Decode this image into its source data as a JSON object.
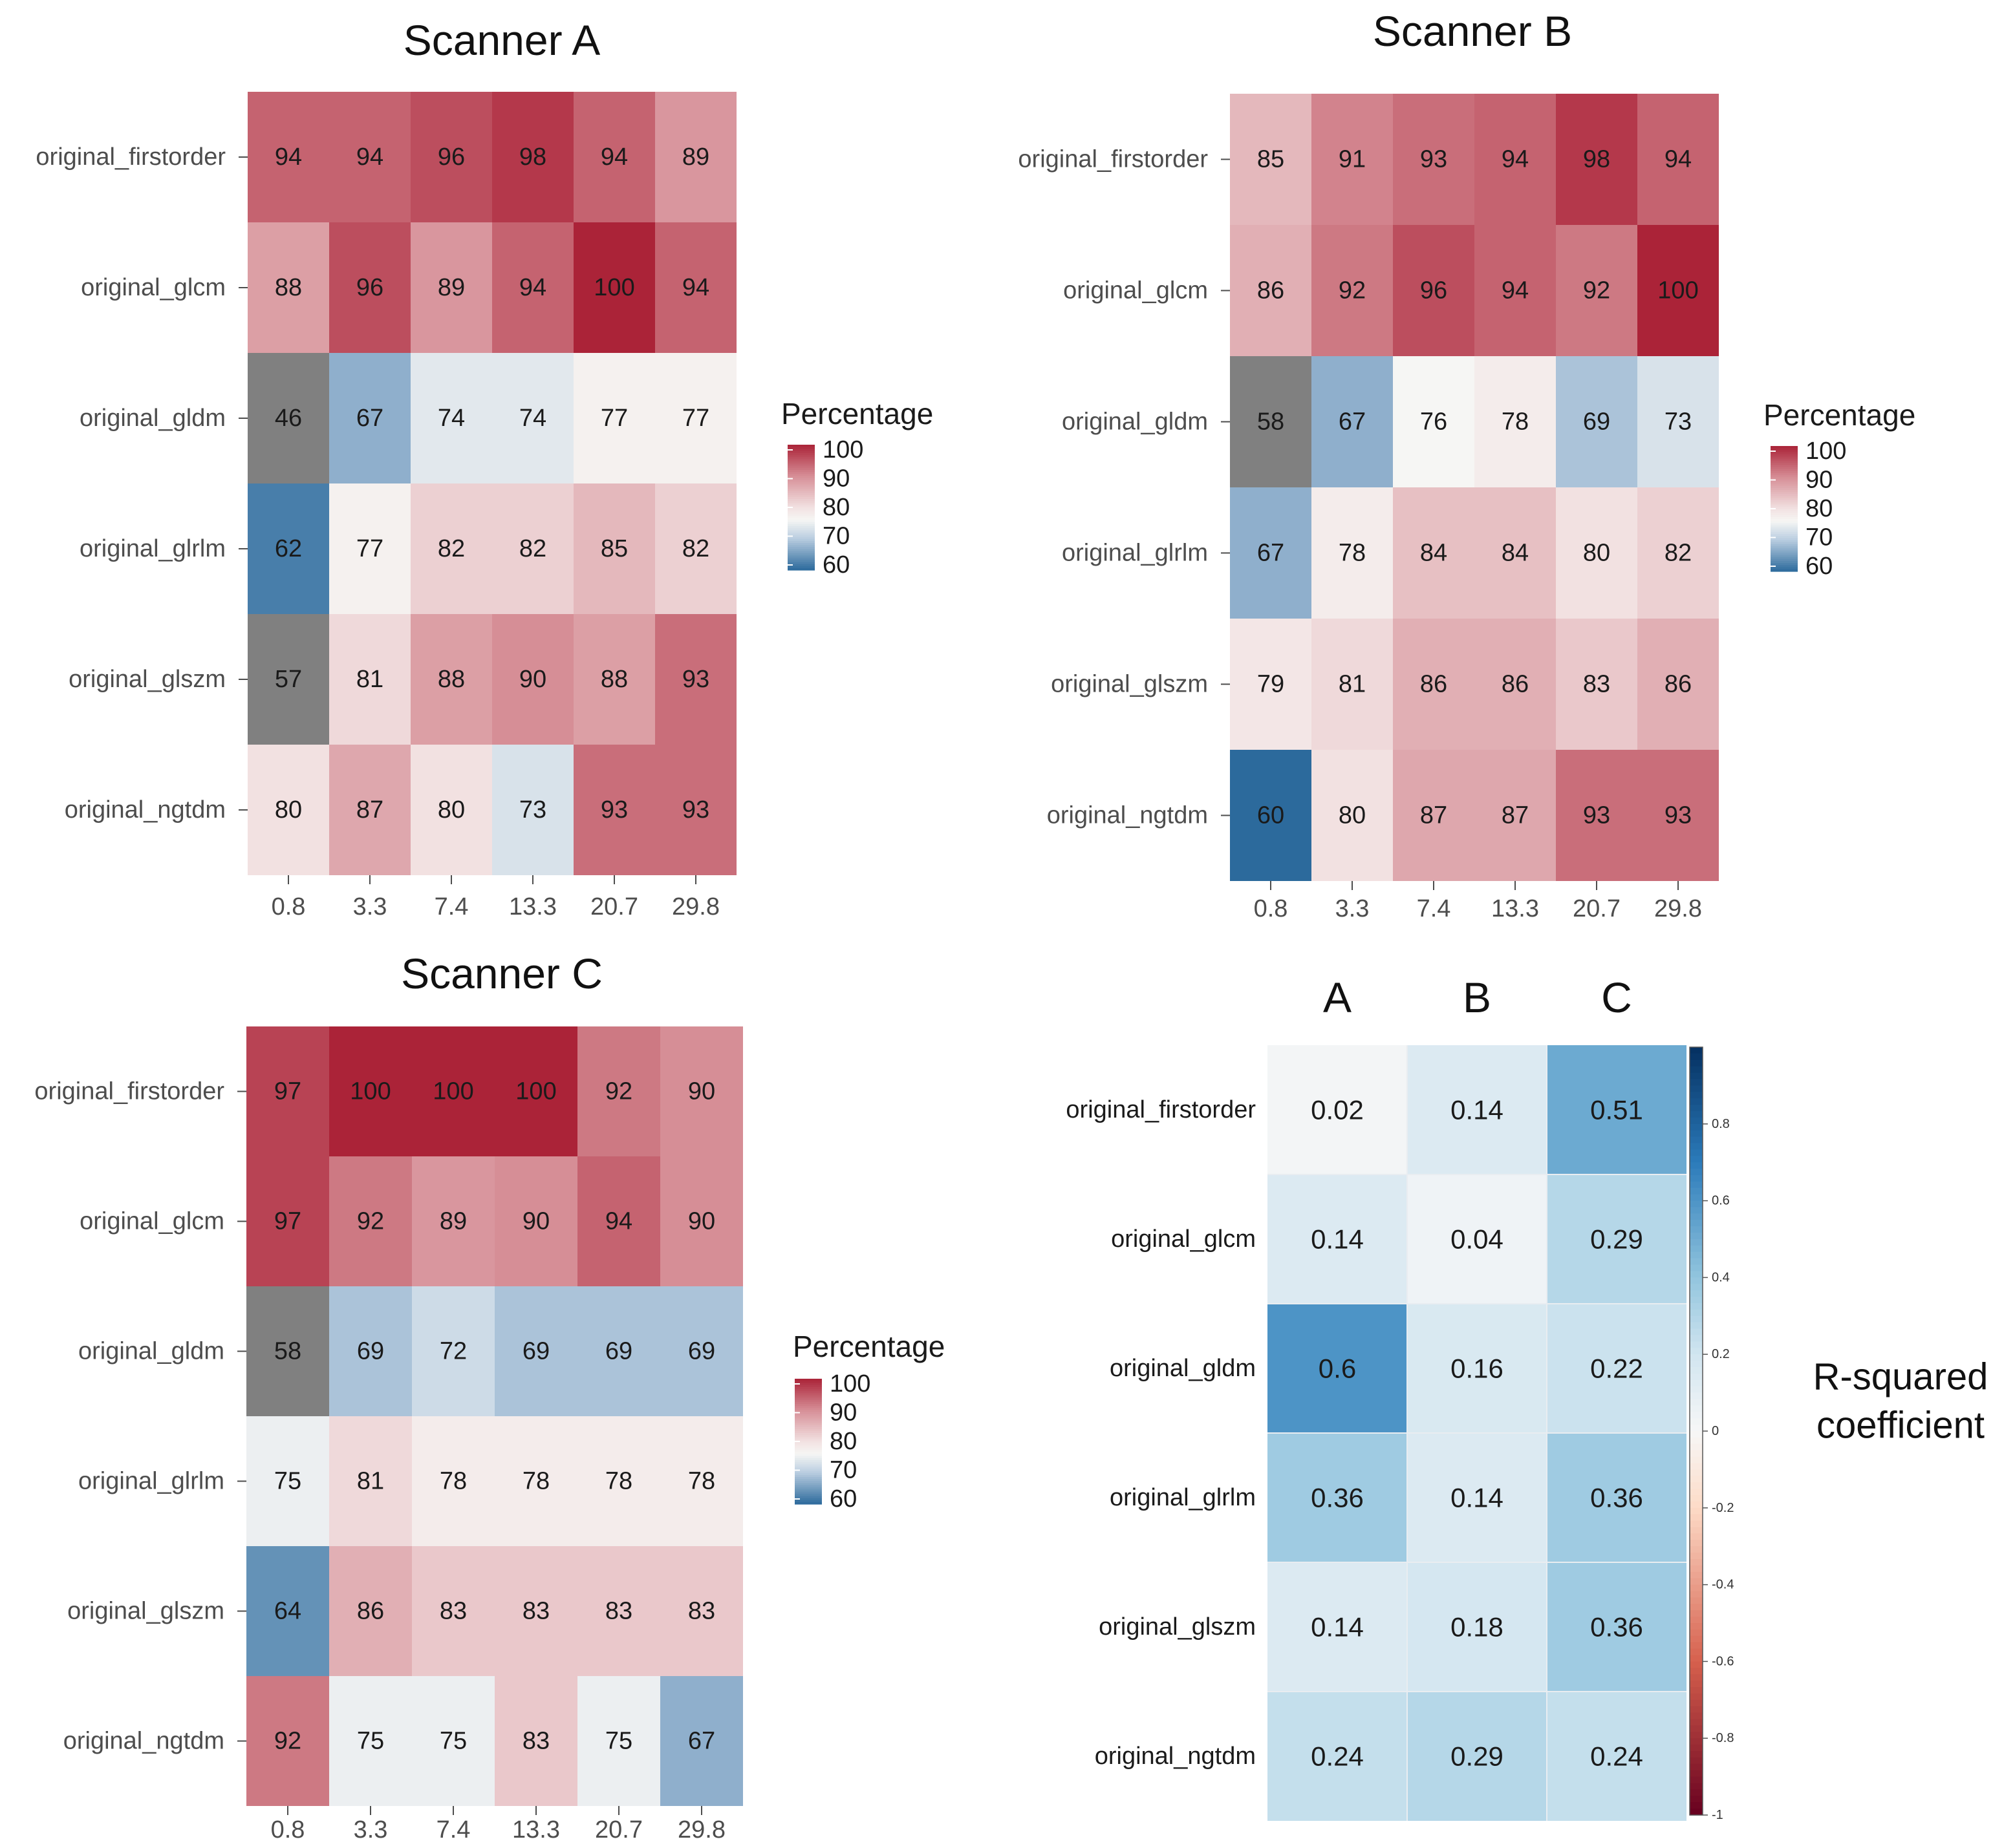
{
  "chart_data": [
    {
      "type": "heatmap",
      "title": "Scanner A",
      "rows": [
        "original_firstorder",
        "original_glcm",
        "original_gldm",
        "original_glrlm",
        "original_glszm",
        "original_ngtdm"
      ],
      "columns": [
        "0.8",
        "3.3",
        "7.4",
        "13.3",
        "20.7",
        "29.8"
      ],
      "values": [
        [
          94,
          94,
          96,
          98,
          94,
          89
        ],
        [
          88,
          96,
          89,
          94,
          100,
          94
        ],
        [
          46,
          67,
          74,
          74,
          77,
          77
        ],
        [
          62,
          77,
          82,
          82,
          85,
          82
        ],
        [
          57,
          81,
          88,
          90,
          88,
          93
        ],
        [
          80,
          87,
          80,
          73,
          93,
          93
        ]
      ],
      "legend": {
        "title": "Percentage",
        "ticks": [
          "100",
          "90",
          "80",
          "70",
          "60"
        ],
        "range": [
          60,
          100
        ]
      }
    },
    {
      "type": "heatmap",
      "title": "Scanner B",
      "rows": [
        "original_firstorder",
        "original_glcm",
        "original_gldm",
        "original_glrlm",
        "original_glszm",
        "original_ngtdm"
      ],
      "columns": [
        "0.8",
        "3.3",
        "7.4",
        "13.3",
        "20.7",
        "29.8"
      ],
      "values": [
        [
          85,
          91,
          93,
          94,
          98,
          94
        ],
        [
          86,
          92,
          96,
          94,
          92,
          100
        ],
        [
          58,
          67,
          76,
          78,
          69,
          73
        ],
        [
          67,
          78,
          84,
          84,
          80,
          82
        ],
        [
          79,
          81,
          86,
          86,
          83,
          86
        ],
        [
          60,
          80,
          87,
          87,
          93,
          93
        ]
      ],
      "legend": {
        "title": "Percentage",
        "ticks": [
          "100",
          "90",
          "80",
          "70",
          "60"
        ],
        "range": [
          60,
          100
        ]
      }
    },
    {
      "type": "heatmap",
      "title": "Scanner C",
      "rows": [
        "original_firstorder",
        "original_glcm",
        "original_gldm",
        "original_glrlm",
        "original_glszm",
        "original_ngtdm"
      ],
      "columns": [
        "0.8",
        "3.3",
        "7.4",
        "13.3",
        "20.7",
        "29.8"
      ],
      "values": [
        [
          97,
          100,
          100,
          100,
          92,
          90
        ],
        [
          97,
          92,
          89,
          90,
          94,
          90
        ],
        [
          58,
          69,
          72,
          69,
          69,
          69
        ],
        [
          75,
          81,
          78,
          78,
          78,
          78
        ],
        [
          64,
          86,
          83,
          83,
          83,
          83
        ],
        [
          92,
          75,
          75,
          83,
          75,
          67
        ]
      ],
      "legend": {
        "title": "Percentage",
        "ticks": [
          "100",
          "90",
          "80",
          "70",
          "60"
        ],
        "range": [
          60,
          100
        ]
      }
    },
    {
      "type": "heatmap",
      "title": "",
      "rows": [
        "original_firstorder",
        "original_glcm",
        "original_gldm",
        "original_glrlm",
        "original_glszm",
        "original_ngtdm"
      ],
      "columns": [
        "A",
        "B",
        "C"
      ],
      "values": [
        [
          0.02,
          0.14,
          0.51
        ],
        [
          0.14,
          0.04,
          0.29
        ],
        [
          0.6,
          0.16,
          0.22
        ],
        [
          0.36,
          0.14,
          0.36
        ],
        [
          0.14,
          0.18,
          0.36
        ],
        [
          0.24,
          0.29,
          0.24
        ]
      ],
      "value_labels": [
        [
          "0.02",
          "0.14",
          "0.51"
        ],
        [
          "0.14",
          "0.04",
          "0.29"
        ],
        [
          "0.6",
          "0.16",
          "0.22"
        ],
        [
          "0.36",
          "0.14",
          "0.36"
        ],
        [
          "0.14",
          "0.18",
          "0.36"
        ],
        [
          "0.24",
          "0.29",
          "0.24"
        ]
      ],
      "legend": {
        "title_lines": [
          "R-squared",
          "coefficient"
        ],
        "ticks": [
          "0.8",
          "0.6",
          "0.4",
          "0.2",
          "0",
          "-0.2",
          "-0.4",
          "-0.6",
          "-0.8",
          "-1"
        ],
        "range": [
          -1,
          1
        ]
      }
    }
  ]
}
